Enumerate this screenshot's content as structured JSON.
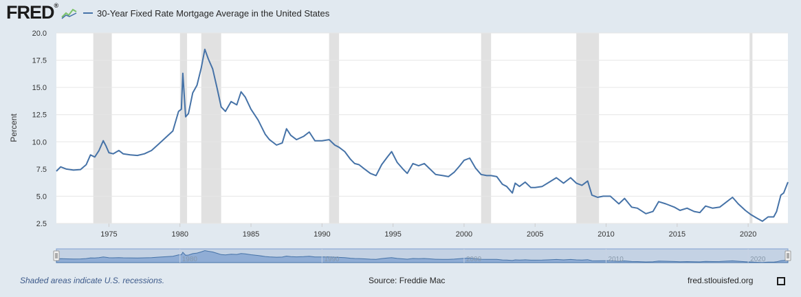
{
  "logo_text": "FRED",
  "logo_mark": "®",
  "legend": {
    "label": "30-Year Fixed Rate Mortgage Average in the United States",
    "color": "#4572a7"
  },
  "footer": {
    "note": "Shaded areas indicate U.S. recessions.",
    "source": "Source: Freddie Mac",
    "site": "fred.stlouisfed.org"
  },
  "icons": {
    "logo_graph": "line-chart-icon",
    "fullscreen": "fullscreen-icon"
  },
  "colors": {
    "line": "#4572a7",
    "recession": "#e1e1e1",
    "background": "#e1e9f0",
    "navigator_fill": "#7fa0d0"
  },
  "chart_data": {
    "type": "line",
    "title": "",
    "xlabel": "",
    "ylabel": "Percent",
    "xlim": [
      1971.3,
      2022.8
    ],
    "ylim": [
      2.5,
      20.0
    ],
    "yticks": [
      "2.5",
      "5.0",
      "7.5",
      "10.0",
      "12.5",
      "15.0",
      "17.5",
      "20.0"
    ],
    "xticks": [
      "1975",
      "1980",
      "1985",
      "1990",
      "1995",
      "2000",
      "2005",
      "2010",
      "2015",
      "2020"
    ],
    "navigator_ticks": [
      "1980",
      "1990",
      "2000",
      "2010",
      "2020"
    ],
    "grid": true,
    "recessions": [
      [
        1973.9,
        1975.2
      ],
      [
        1980.0,
        1980.5
      ],
      [
        1981.5,
        1982.9
      ],
      [
        1990.5,
        1991.2
      ],
      [
        2001.2,
        2001.9
      ],
      [
        2007.9,
        2009.5
      ],
      [
        2020.1,
        2020.3
      ]
    ],
    "series": [
      {
        "name": "30-Year Fixed Rate Mortgage Average in the United States",
        "x": [
          1971.3,
          1971.6,
          1972.0,
          1972.5,
          1973.0,
          1973.4,
          1973.7,
          1974.0,
          1974.3,
          1974.6,
          1974.8,
          1975.0,
          1975.3,
          1975.7,
          1976.0,
          1976.5,
          1977.0,
          1977.5,
          1978.0,
          1978.5,
          1979.0,
          1979.5,
          1979.9,
          1980.1,
          1980.2,
          1980.4,
          1980.6,
          1980.9,
          1981.2,
          1981.5,
          1981.75,
          1982.0,
          1982.3,
          1982.6,
          1982.9,
          1983.2,
          1983.6,
          1984.0,
          1984.3,
          1984.6,
          1985.0,
          1985.5,
          1986.0,
          1986.3,
          1986.8,
          1987.2,
          1987.5,
          1987.8,
          1988.2,
          1988.7,
          1989.1,
          1989.5,
          1990.0,
          1990.5,
          1990.9,
          1991.2,
          1991.6,
          1992.0,
          1992.3,
          1992.6,
          1993.0,
          1993.4,
          1993.8,
          1994.2,
          1994.6,
          1994.9,
          1995.3,
          1995.7,
          1996.0,
          1996.4,
          1996.8,
          1997.2,
          1997.6,
          1998.0,
          1998.5,
          1998.9,
          1999.3,
          1999.7,
          2000.0,
          2000.4,
          2000.8,
          2001.2,
          2001.6,
          2001.9,
          2002.3,
          2002.7,
          2003.0,
          2003.4,
          2003.6,
          2003.9,
          2004.3,
          2004.7,
          2005.0,
          2005.5,
          2006.0,
          2006.5,
          2007.0,
          2007.5,
          2007.9,
          2008.3,
          2008.7,
          2009.0,
          2009.4,
          2009.8,
          2010.3,
          2010.9,
          2011.3,
          2011.8,
          2012.2,
          2012.8,
          2013.3,
          2013.7,
          2014.2,
          2014.8,
          2015.2,
          2015.7,
          2016.2,
          2016.6,
          2017.0,
          2017.5,
          2018.0,
          2018.5,
          2018.9,
          2019.3,
          2019.8,
          2020.2,
          2020.6,
          2021.0,
          2021.4,
          2021.8,
          2022.0,
          2022.3,
          2022.5,
          2022.8
        ],
        "y": [
          7.3,
          7.7,
          7.5,
          7.4,
          7.45,
          7.9,
          8.8,
          8.6,
          9.2,
          10.1,
          9.6,
          9.0,
          8.9,
          9.2,
          8.9,
          8.8,
          8.75,
          8.9,
          9.2,
          9.8,
          10.4,
          11.0,
          12.8,
          13.0,
          16.3,
          12.3,
          12.6,
          14.5,
          15.2,
          16.8,
          18.5,
          17.6,
          16.7,
          15.0,
          13.2,
          12.8,
          13.7,
          13.4,
          14.6,
          14.1,
          13.0,
          12.0,
          10.7,
          10.2,
          9.7,
          9.9,
          11.2,
          10.6,
          10.2,
          10.5,
          10.9,
          10.1,
          10.1,
          10.2,
          9.7,
          9.5,
          9.1,
          8.4,
          8.0,
          7.9,
          7.5,
          7.1,
          6.9,
          7.9,
          8.6,
          9.1,
          8.1,
          7.5,
          7.1,
          8.0,
          7.8,
          8.0,
          7.5,
          7.0,
          6.9,
          6.8,
          7.2,
          7.8,
          8.3,
          8.5,
          7.6,
          7.0,
          6.9,
          6.9,
          6.8,
          6.1,
          5.9,
          5.3,
          6.2,
          5.9,
          6.3,
          5.8,
          5.8,
          5.9,
          6.3,
          6.7,
          6.2,
          6.7,
          6.2,
          6.0,
          6.4,
          5.1,
          4.9,
          5.0,
          5.0,
          4.3,
          4.8,
          4.0,
          3.9,
          3.4,
          3.6,
          4.5,
          4.3,
          4.0,
          3.7,
          3.9,
          3.6,
          3.5,
          4.1,
          3.9,
          4.0,
          4.5,
          4.9,
          4.3,
          3.7,
          3.3,
          3.0,
          2.7,
          3.1,
          3.1,
          3.6,
          5.1,
          5.3,
          6.3
        ]
      }
    ]
  }
}
